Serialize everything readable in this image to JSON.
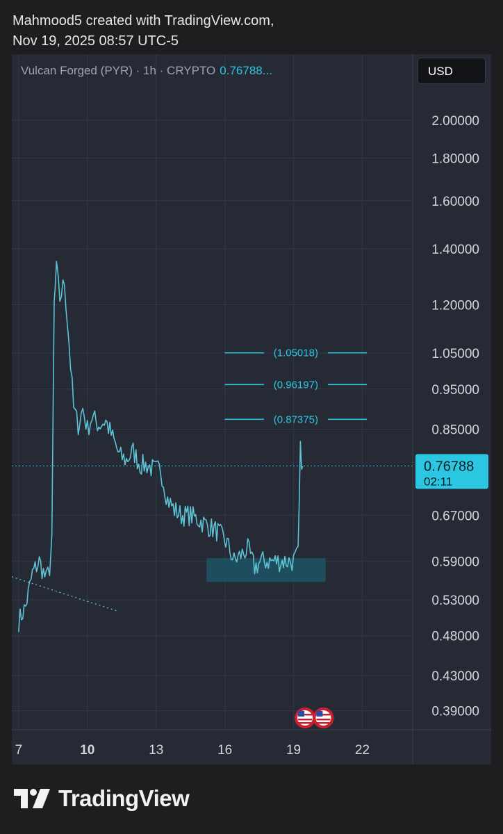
{
  "header": {
    "line1": "Mahmood5 created with TradingView.com,",
    "line2": "Nov 19, 2025 08:57 UTC-5"
  },
  "symbol": {
    "label": "Vulcan Forged (PYR) · 1h · CRYPTO",
    "price": "0.76788..."
  },
  "currency": "USD",
  "brand": "TradingView",
  "colors": {
    "background": "#262a35",
    "candle": "#5ec3d4",
    "accent": "#2bc6e2",
    "zone": "#1d5564"
  },
  "chart_data": {
    "type": "line",
    "title": "Vulcan Forged (PYR) · 1h · CRYPTO",
    "y_scale": "log",
    "ylim": [
      0.37,
      2.4
    ],
    "xlim": [
      6.7,
      24.2
    ],
    "y_ticks": [
      "2.00000",
      "1.80000",
      "1.60000",
      "1.40000",
      "1.20000",
      "1.05000",
      "0.95000",
      "0.85000",
      "0.67000",
      "0.59000",
      "0.53000",
      "0.48000",
      "0.43000",
      "0.39000"
    ],
    "y_tick_values": [
      2.0,
      1.8,
      1.6,
      1.4,
      1.2,
      1.05,
      0.95,
      0.85,
      0.67,
      0.59,
      0.53,
      0.48,
      0.43,
      0.39
    ],
    "x_ticks": [
      "7",
      "10",
      "13",
      "16",
      "19",
      "22"
    ],
    "x_tick_values": [
      7,
      10,
      13,
      16,
      19,
      22
    ],
    "x_tick_bold": [
      false,
      true,
      false,
      false,
      false,
      false
    ],
    "series": [
      {
        "x": [
          7.0,
          7.3,
          7.6,
          7.9,
          8.2,
          8.35,
          8.45,
          8.55,
          8.65,
          8.8,
          9.0,
          9.2,
          9.4,
          9.6,
          9.8,
          10.0,
          10.2,
          10.5,
          10.8,
          11.1,
          11.4,
          11.7,
          12.0,
          12.3,
          12.6,
          12.9,
          13.2,
          13.5,
          13.8,
          14.1,
          14.5,
          14.9,
          15.3,
          15.7,
          16.1,
          16.4,
          16.7,
          17.0,
          17.3,
          17.6,
          17.9,
          18.2,
          18.5,
          18.8,
          19.0,
          19.2,
          19.3,
          19.4
        ],
        "values": [
          0.5,
          0.52,
          0.57,
          0.59,
          0.56,
          0.58,
          0.62,
          1.2,
          1.32,
          1.22,
          1.28,
          1.08,
          0.9,
          0.86,
          0.9,
          0.85,
          0.88,
          0.86,
          0.87,
          0.83,
          0.79,
          0.78,
          0.8,
          0.77,
          0.77,
          0.76,
          0.76,
          0.7,
          0.68,
          0.67,
          0.67,
          0.66,
          0.65,
          0.64,
          0.62,
          0.59,
          0.6,
          0.61,
          0.58,
          0.59,
          0.59,
          0.59,
          0.59,
          0.59,
          0.59,
          0.6,
          0.8,
          0.767
        ]
      }
    ],
    "last_price": {
      "value": 0.76788,
      "label": "0.76788",
      "countdown": "02:11"
    },
    "target_levels": [
      {
        "value": 1.05018,
        "label": "(1.05018)"
      },
      {
        "value": 0.96197,
        "label": "(0.96197)"
      },
      {
        "value": 0.87375,
        "label": "(0.87375)"
      }
    ],
    "target_x_range": [
      16.0,
      22.2
    ],
    "support_zone": {
      "x_range": [
        15.2,
        20.4
      ],
      "y_range": [
        0.557,
        0.595
      ]
    },
    "trendline": {
      "x": [
        6.7,
        11.3
      ],
      "y": [
        0.565,
        0.514
      ]
    },
    "event_markers": [
      {
        "x": 19.5,
        "icon": "us-flag-icon"
      },
      {
        "x": 20.3,
        "icon": "us-flag-icon"
      }
    ]
  }
}
